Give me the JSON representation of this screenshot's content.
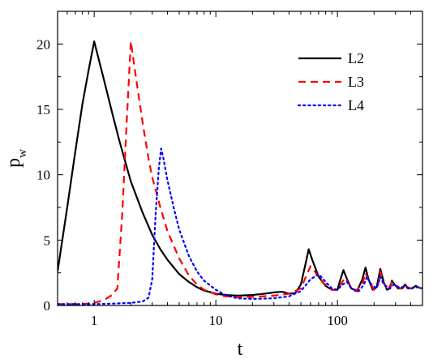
{
  "chart_data": {
    "type": "line",
    "xlabel": "t",
    "ylabel": "p",
    "ylabel_subscript": "w",
    "x_scale": "log",
    "xlim": [
      0.5,
      500
    ],
    "ylim": [
      0,
      22.5
    ],
    "x_ticks": [
      1,
      10,
      100
    ],
    "x_tick_labels": [
      "1",
      "10",
      "100"
    ],
    "y_ticks": [
      0,
      5,
      10,
      15,
      20
    ],
    "y_tick_labels": [
      "0",
      "5",
      "10",
      "15",
      "20"
    ],
    "grid": false,
    "legend_position": "top-right",
    "series": [
      {
        "name": "L2",
        "color": "#000000",
        "dash": "solid",
        "points": [
          [
            0.5,
            2.6
          ],
          [
            0.6,
            7.5
          ],
          [
            0.7,
            11.8
          ],
          [
            0.8,
            15.4
          ],
          [
            0.9,
            18.0
          ],
          [
            1.0,
            20.2
          ],
          [
            1.2,
            17.3
          ],
          [
            1.4,
            14.8
          ],
          [
            1.6,
            12.7
          ],
          [
            1.8,
            11.0
          ],
          [
            2.0,
            9.5
          ],
          [
            2.5,
            7.1
          ],
          [
            3.0,
            5.4
          ],
          [
            3.5,
            4.3
          ],
          [
            4.0,
            3.5
          ],
          [
            5.0,
            2.4
          ],
          [
            6.0,
            1.8
          ],
          [
            7.0,
            1.4
          ],
          [
            8.0,
            1.15
          ],
          [
            10,
            0.9
          ],
          [
            12,
            0.8
          ],
          [
            15,
            0.75
          ],
          [
            20,
            0.8
          ],
          [
            25,
            0.9
          ],
          [
            30,
            1.0
          ],
          [
            35,
            1.05
          ],
          [
            40,
            0.9
          ],
          [
            45,
            0.95
          ],
          [
            50,
            1.6
          ],
          [
            55,
            3.3
          ],
          [
            58,
            4.3
          ],
          [
            62,
            3.5
          ],
          [
            70,
            2.2
          ],
          [
            80,
            1.5
          ],
          [
            90,
            1.2
          ],
          [
            100,
            1.2
          ],
          [
            105,
            1.9
          ],
          [
            112,
            2.7
          ],
          [
            120,
            2.0
          ],
          [
            130,
            1.3
          ],
          [
            145,
            1.1
          ],
          [
            160,
            2.0
          ],
          [
            170,
            2.9
          ],
          [
            180,
            2.0
          ],
          [
            195,
            1.2
          ],
          [
            210,
            1.4
          ],
          [
            225,
            2.8
          ],
          [
            240,
            1.8
          ],
          [
            255,
            1.2
          ],
          [
            270,
            1.3
          ],
          [
            280,
            1.9
          ],
          [
            295,
            1.6
          ],
          [
            315,
            1.3
          ],
          [
            340,
            1.3
          ],
          [
            360,
            1.6
          ],
          [
            380,
            1.3
          ],
          [
            410,
            1.3
          ],
          [
            440,
            1.5
          ],
          [
            470,
            1.35
          ],
          [
            500,
            1.3
          ]
        ]
      },
      {
        "name": "L3",
        "color": "#ff0000",
        "dash": "dashed",
        "points": [
          [
            0.5,
            0.1
          ],
          [
            0.8,
            0.1
          ],
          [
            1.0,
            0.2
          ],
          [
            1.2,
            0.4
          ],
          [
            1.4,
            0.8
          ],
          [
            1.55,
            1.3
          ],
          [
            1.7,
            7.0
          ],
          [
            1.85,
            14.0
          ],
          [
            2.0,
            20.2
          ],
          [
            2.2,
            17.5
          ],
          [
            2.5,
            14.0
          ],
          [
            2.8,
            11.2
          ],
          [
            3.0,
            9.8
          ],
          [
            3.5,
            7.5
          ],
          [
            4.0,
            5.7
          ],
          [
            5.0,
            3.6
          ],
          [
            6.0,
            2.3
          ],
          [
            7.0,
            1.6
          ],
          [
            8.0,
            1.2
          ],
          [
            10,
            0.85
          ],
          [
            12,
            0.7
          ],
          [
            15,
            0.65
          ],
          [
            20,
            0.65
          ],
          [
            30,
            0.75
          ],
          [
            40,
            0.9
          ],
          [
            50,
            1.3
          ],
          [
            55,
            2.2
          ],
          [
            60,
            3.0
          ],
          [
            65,
            2.6
          ],
          [
            75,
            1.8
          ],
          [
            90,
            1.2
          ],
          [
            100,
            1.2
          ],
          [
            108,
            1.7
          ],
          [
            115,
            2.1
          ],
          [
            125,
            1.6
          ],
          [
            140,
            1.1
          ],
          [
            160,
            1.6
          ],
          [
            170,
            2.5
          ],
          [
            180,
            1.9
          ],
          [
            200,
            1.2
          ],
          [
            215,
            1.5
          ],
          [
            225,
            2.6
          ],
          [
            240,
            1.7
          ],
          [
            260,
            1.2
          ],
          [
            280,
            1.8
          ],
          [
            300,
            1.5
          ],
          [
            330,
            1.3
          ],
          [
            360,
            1.5
          ],
          [
            400,
            1.3
          ],
          [
            440,
            1.45
          ],
          [
            500,
            1.3
          ]
        ]
      },
      {
        "name": "L4",
        "color": "#0000ff",
        "dash": "dotted",
        "points": [
          [
            0.5,
            0.1
          ],
          [
            1.0,
            0.1
          ],
          [
            1.5,
            0.15
          ],
          [
            2.0,
            0.2
          ],
          [
            2.5,
            0.3
          ],
          [
            2.8,
            0.6
          ],
          [
            3.0,
            2.0
          ],
          [
            3.2,
            7.0
          ],
          [
            3.4,
            10.5
          ],
          [
            3.55,
            12.0
          ],
          [
            3.7,
            11.3
          ],
          [
            4.0,
            9.6
          ],
          [
            4.5,
            7.5
          ],
          [
            5.0,
            5.8
          ],
          [
            6.0,
            3.8
          ],
          [
            7.0,
            2.6
          ],
          [
            8.0,
            1.9
          ],
          [
            10,
            1.2
          ],
          [
            12,
            0.8
          ],
          [
            15,
            0.55
          ],
          [
            20,
            0.5
          ],
          [
            30,
            0.55
          ],
          [
            40,
            0.7
          ],
          [
            50,
            1.1
          ],
          [
            60,
            2.0
          ],
          [
            70,
            2.4
          ],
          [
            80,
            1.8
          ],
          [
            90,
            1.3
          ],
          [
            100,
            1.2
          ],
          [
            110,
            1.6
          ],
          [
            120,
            1.8
          ],
          [
            130,
            1.3
          ],
          [
            150,
            1.1
          ],
          [
            165,
            1.6
          ],
          [
            175,
            2.2
          ],
          [
            190,
            1.6
          ],
          [
            210,
            1.3
          ],
          [
            225,
            2.2
          ],
          [
            240,
            1.6
          ],
          [
            270,
            1.3
          ],
          [
            290,
            1.6
          ],
          [
            320,
            1.4
          ],
          [
            360,
            1.4
          ],
          [
            400,
            1.3
          ],
          [
            450,
            1.4
          ],
          [
            500,
            1.3
          ]
        ]
      }
    ]
  }
}
